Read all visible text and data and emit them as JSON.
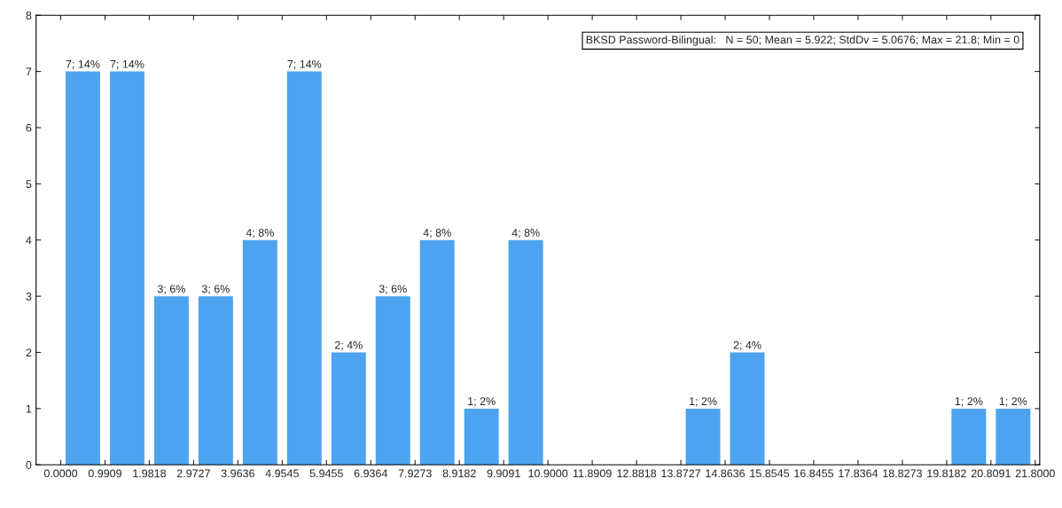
{
  "chart_data": {
    "type": "histogram",
    "bins": [
      0.0,
      0.9909,
      1.9818,
      2.9727,
      3.9636,
      4.9545,
      5.9455,
      6.9364,
      7.9273,
      8.9182,
      9.9091,
      10.9,
      11.8909,
      12.8818,
      13.8727,
      14.8636,
      15.8545,
      16.8455,
      17.8364,
      18.8273,
      19.8182,
      20.8091,
      21.8
    ],
    "values": [
      7,
      7,
      3,
      3,
      4,
      7,
      2,
      3,
      4,
      1,
      4,
      0,
      0,
      0,
      1,
      2,
      0,
      0,
      0,
      0,
      1,
      1
    ],
    "value_labels": [
      "7; 14%",
      "7; 14%",
      "3; 6%",
      "3; 6%",
      "4; 8%",
      "7; 14%",
      "2; 4%",
      "3; 6%",
      "4; 8%",
      "1; 2%",
      "4; 8%",
      null,
      null,
      null,
      "1; 2%",
      "2; 4%",
      null,
      null,
      null,
      null,
      "1; 2%",
      "1; 2%"
    ],
    "color": "#4da3f0",
    "xlim": [
      -0.55,
      21.9
    ],
    "xticks": [
      {
        "value": 0.0,
        "label": "0.0000"
      },
      {
        "value": 0.9909,
        "label": "0.9909"
      },
      {
        "value": 1.9818,
        "label": "1.9818"
      },
      {
        "value": 2.9727,
        "label": "2.9727"
      },
      {
        "value": 3.9636,
        "label": "3.9636"
      },
      {
        "value": 4.9545,
        "label": "4.9545"
      },
      {
        "value": 5.9455,
        "label": "5.9455"
      },
      {
        "value": 6.9364,
        "label": "6.9364"
      },
      {
        "value": 7.9273,
        "label": "7.9273"
      },
      {
        "value": 8.9182,
        "label": "8.9182"
      },
      {
        "value": 9.9091,
        "label": "9.9091"
      },
      {
        "value": 10.9,
        "label": "10.9000"
      },
      {
        "value": 11.8909,
        "label": "11.8909"
      },
      {
        "value": 12.8818,
        "label": "12.8818"
      },
      {
        "value": 13.8727,
        "label": "13.8727"
      },
      {
        "value": 14.8636,
        "label": "14.8636"
      },
      {
        "value": 15.8545,
        "label": "15.8545"
      },
      {
        "value": 16.8455,
        "label": "16.8455"
      },
      {
        "value": 17.8364,
        "label": "17.8364"
      },
      {
        "value": 18.8273,
        "label": "18.8273"
      },
      {
        "value": 19.8182,
        "label": "19.8182"
      },
      {
        "value": 20.8091,
        "label": "20.8091"
      },
      {
        "value": 21.8,
        "label": "21.8000"
      }
    ],
    "ylim": [
      0,
      8
    ],
    "yticks": [
      0,
      1,
      2,
      3,
      4,
      5,
      6,
      7,
      8
    ],
    "grid": false,
    "annotations": [
      "BKSD Password-Bilingual:   N = 50; Mean = 5.922; StdDv = 5.0676; Max = 21.8; Min = 0"
    ]
  }
}
